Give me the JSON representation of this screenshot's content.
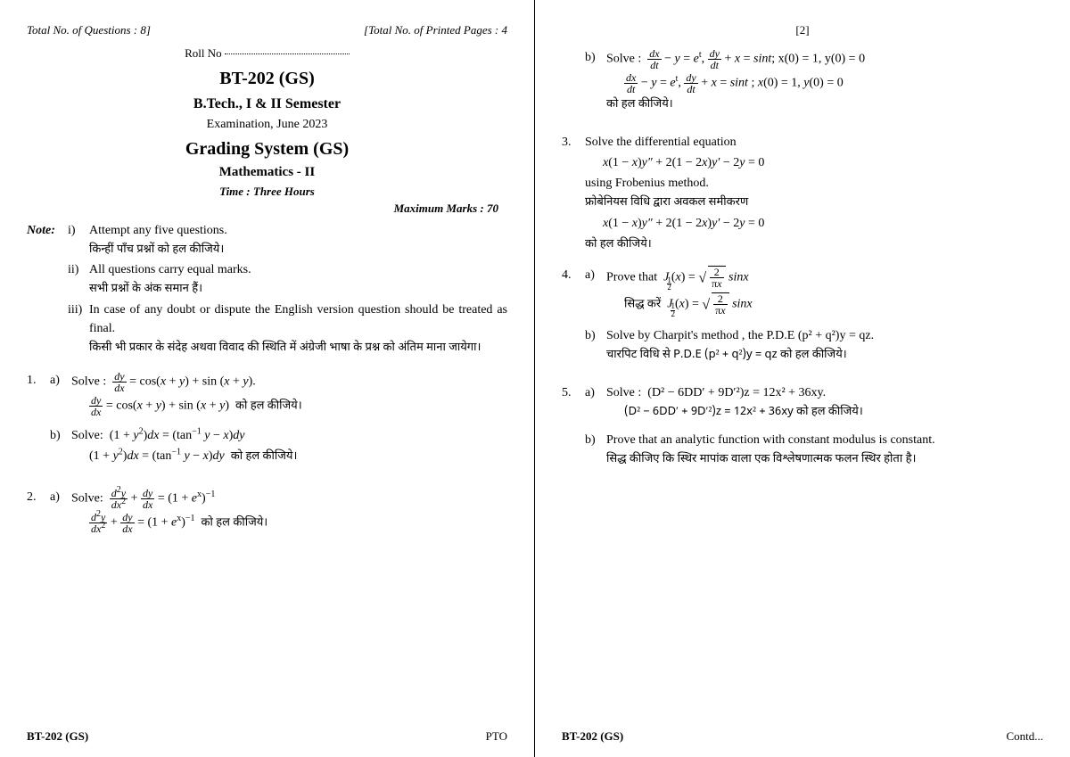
{
  "page1": {
    "totalQ": "Total No. of Questions : 8]",
    "totalP": "[Total No. of Printed Pages : 4",
    "rollLabel": "Roll No",
    "code": "BT-202 (GS)",
    "degree": "B.Tech., I & II Semester",
    "exam": "Examination, June 2023",
    "gs": "Grading System (GS)",
    "subject": "Mathematics - II",
    "time": "Time : Three Hours",
    "maxmarks": "Maximum Marks : 70",
    "noteLabel": "Note:",
    "notes": {
      "i": {
        "n": "i)",
        "en": "Attempt any five questions.",
        "hi": "किन्हीं पाँच प्रश्नों को हल कीजिये।"
      },
      "ii": {
        "n": "ii)",
        "en": "All questions carry equal marks.",
        "hi": "सभी प्रश्नों के अंक समान हैं।"
      },
      "iii": {
        "n": "iii)",
        "en": "In case of any doubt or dispute the English version question should be treated as final.",
        "hi": "किसी भी प्रकार के संदेह अथवा विवाद की स्थिति में अंग्रेजी भाषा के प्रश्न को अंतिम माना जायेगा।"
      }
    },
    "q1": {
      "num": "1.",
      "a": {
        "label": "a)",
        "solve": "Solve :",
        "eqHi": "को हल कीजिये।"
      },
      "b": {
        "label": "b)",
        "solve": "Solve:",
        "eqHi": "को हल कीजिये।"
      }
    },
    "q2": {
      "num": "2.",
      "a": {
        "label": "a)",
        "solve": "Solve:",
        "eqHi": "को हल कीजिये।"
      }
    },
    "footerCode": "BT-202 (GS)",
    "footerPto": "PTO"
  },
  "page2": {
    "pageNum": "[2]",
    "q2b": {
      "label": "b)",
      "solve": "Solve :",
      "cond": "; x(0) = 1, y(0) = 0",
      "eqHi": "को हल कीजिये।"
    },
    "q3": {
      "num": "3.",
      "en1": "Solve the differential equation",
      "en2": "using Frobenius method.",
      "hi1": "फ्रोबेनियस विधि द्वारा अवकल समीकरण",
      "hi2": "को हल कीजिये।"
    },
    "q4": {
      "num": "4.",
      "a": {
        "label": "a)",
        "en": "Prove that",
        "hi": "सिद्ध करें"
      },
      "b": {
        "label": "b)",
        "en": "Solve by Charpit's method , the P.D.E (p² + q²)y = qz.",
        "hi": "चारपिट विधि से P.D.E (p² + q²)y = qz को हल कीजिये।"
      }
    },
    "q5": {
      "num": "5.",
      "a": {
        "label": "a)",
        "solve": "Solve :",
        "eq": "(D² − 6DD′ + 9D′²)z = 12x² + 36xy.",
        "hi": "(D² − 6DD′ + 9D′²)z = 12x² + 36xy को हल कीजिये।"
      },
      "b": {
        "label": "b)",
        "en": "Prove that an analytic function with constant modulus is constant.",
        "hi": "सिद्ध कीजिए कि स्थिर मापांक वाला एक विश्लेषणात्मक फलन स्थिर होता है।"
      }
    },
    "footerCode": "BT-202 (GS)",
    "footerContd": "Contd..."
  }
}
